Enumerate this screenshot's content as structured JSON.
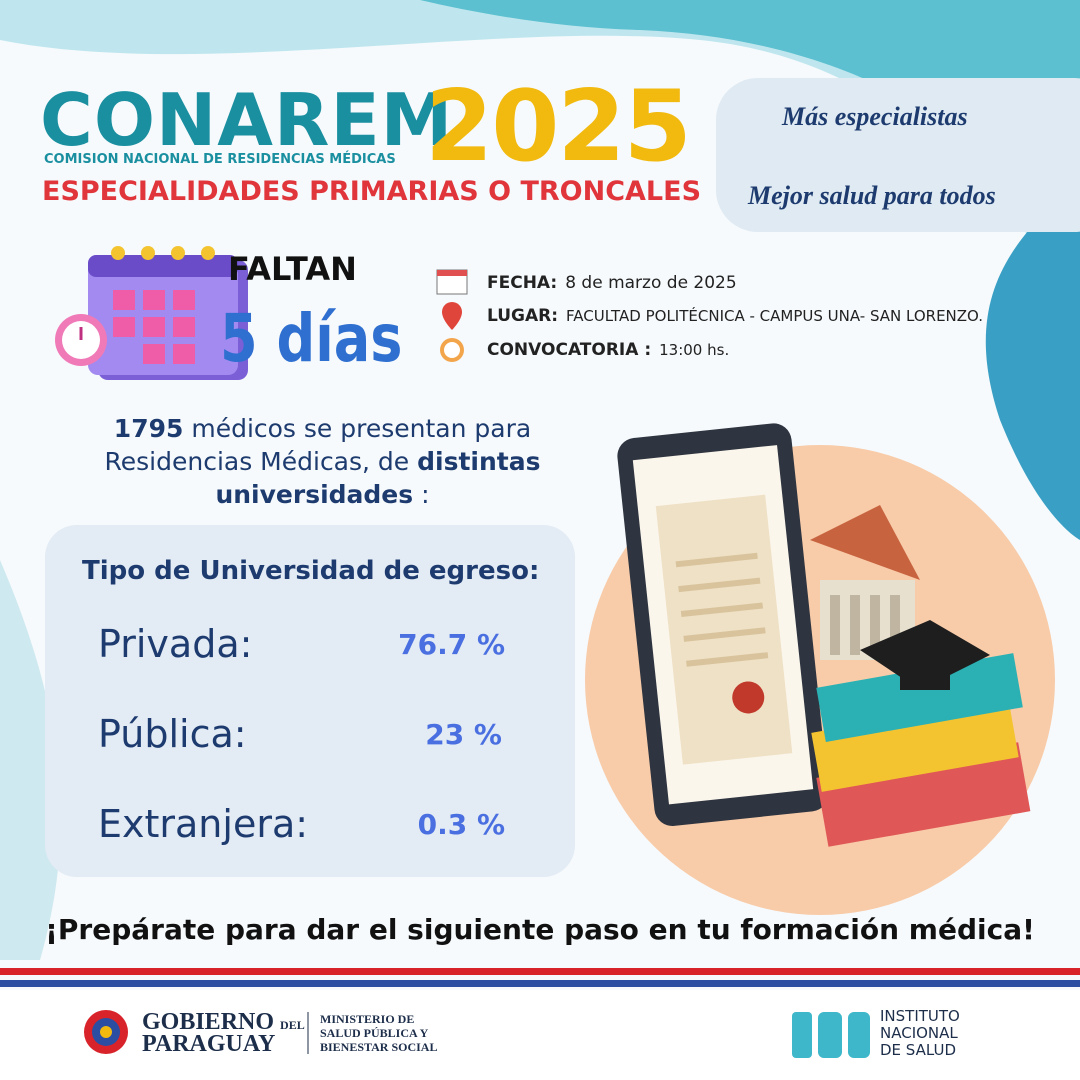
{
  "header": {
    "brand": "CONAREM",
    "year": "2025",
    "subtitle": "COMISION NACIONAL DE RESIDENCIAS MÉDICAS",
    "heading": "ESPECIALIDADES PRIMARIAS O TRONCALES"
  },
  "slogan": {
    "line1": "Más especialistas",
    "line2": "Mejor salud para todos"
  },
  "countdown": {
    "label": "FALTAN",
    "value": "5 días"
  },
  "details": [
    {
      "label": "FECHA:",
      "value": "8 de marzo de 2025"
    },
    {
      "label": "LUGAR:",
      "value": "FACULTAD POLITÉCNICA - CAMPUS UNA- SAN LORENZO."
    },
    {
      "label": "CONVOCATORIA :",
      "value": "13:00 hs."
    }
  ],
  "intro": [
    "1795",
    " médicos se presentan para Residencias Médicas, de ",
    "distintas universidades",
    " :"
  ],
  "table": {
    "title": "Tipo de Universidad de egreso:",
    "rows": [
      [
        "Privada:",
        "76.7 %"
      ],
      [
        "Pública:",
        "23 %"
      ],
      [
        "Extranjera:",
        "0.3 %"
      ]
    ]
  },
  "tagline": "¡Prepárate para dar el siguiente paso en tu formación médica!",
  "footer": {
    "government": [
      "GOBIERNO",
      "DEL",
      "PARAGUAY"
    ],
    "ministry": [
      "MINISTERIO DE",
      "SALUD PÚBLICA Y",
      "BIENESTAR SOCIAL"
    ],
    "institute": [
      "INSTITUTO",
      "NACIONAL",
      "DE SALUD"
    ]
  }
}
